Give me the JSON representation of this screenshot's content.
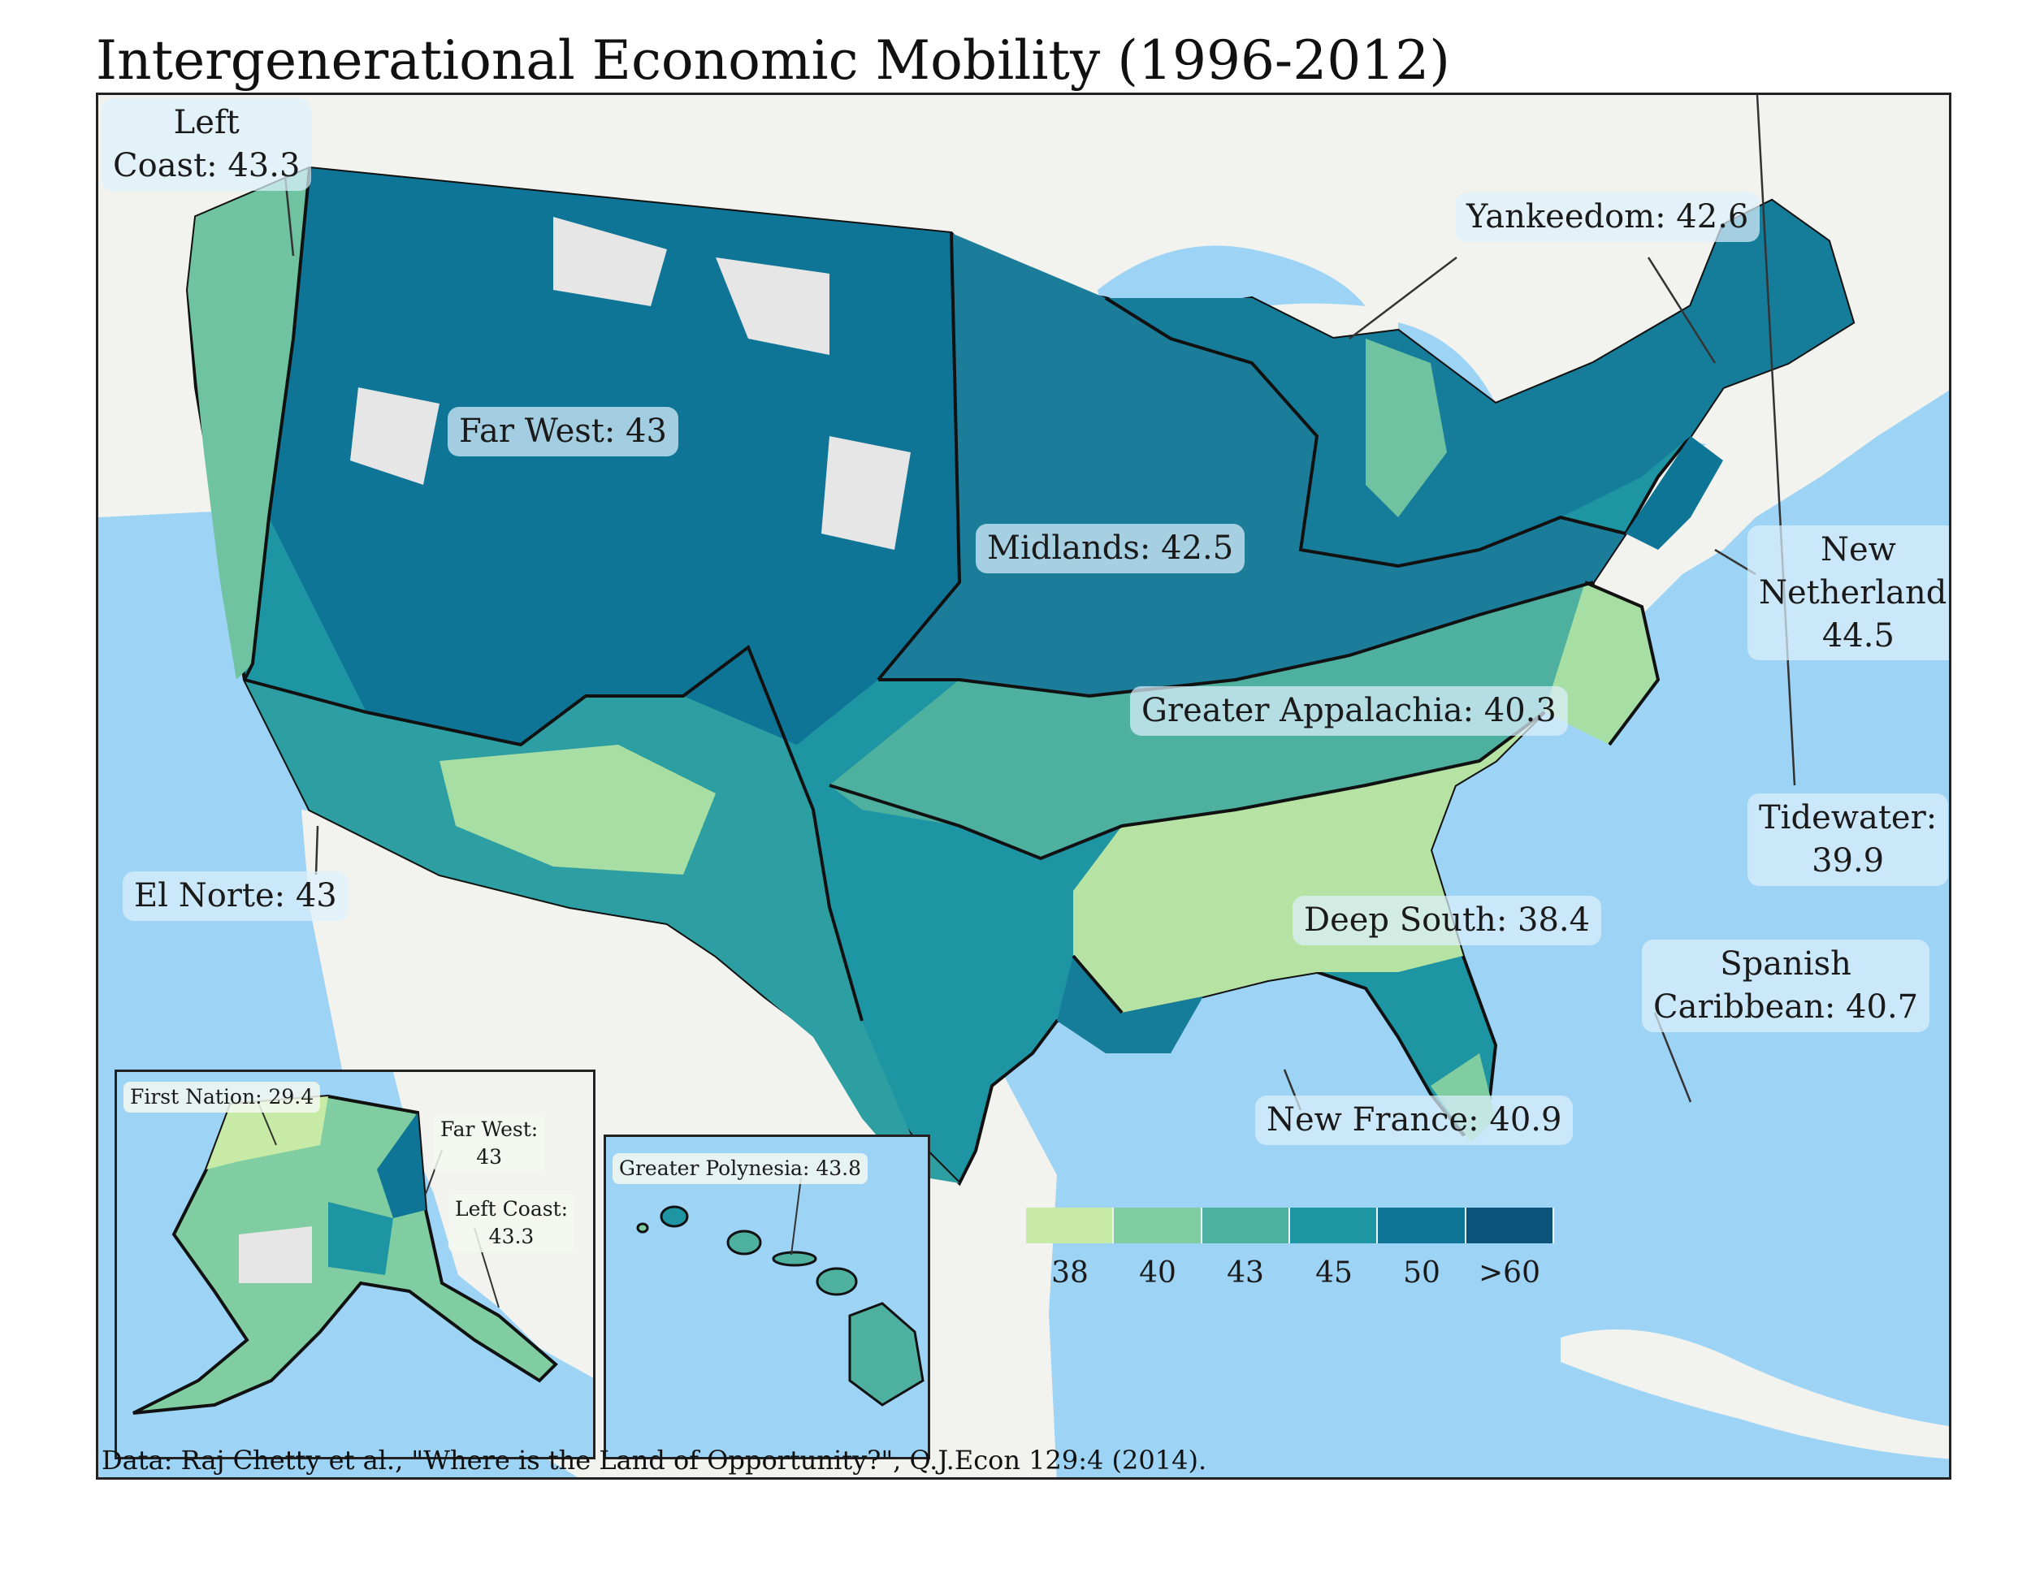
{
  "title": "Intergenerational Economic Mobility (1996-2012)",
  "source": "Data: Raj Chetty et al., \"Where is the Land of Opportunity?\", Q.J.Econ 129:4 (2014).",
  "regions": {
    "left_coast": {
      "line1": "Left",
      "line2": "Coast: 43.3"
    },
    "far_west": "Far West: 43",
    "yankeedom": "Yankeedom: 42.6",
    "midlands": "Midlands: 42.5",
    "new_netherland": {
      "line1": "New",
      "line2": "Netherland:",
      "line3": "44.5"
    },
    "greater_appalachia": "Greater Appalachia: 40.3",
    "tidewater": {
      "line1": "Tidewater:",
      "line2": "39.9"
    },
    "el_norte": "El Norte: 43",
    "deep_south": "Deep South: 38.4",
    "spanish_caribbean": {
      "line1": "Spanish",
      "line2": "Caribbean: 40.7"
    },
    "new_france": "New France: 40.9"
  },
  "alaska_inset": {
    "first_nation": "First Nation: 29.4",
    "far_west": {
      "line1": "Far West:",
      "line2": "43"
    },
    "left_coast": {
      "line1": "Left Coast:",
      "line2": "43.3"
    }
  },
  "hawaii_inset": {
    "greater_polynesia": "Greater Polynesia: 43.8"
  },
  "legend": {
    "colors": [
      "#c7eba6",
      "#80cda2",
      "#4eb1a0",
      "#1e95a3",
      "#0f7596",
      "#0b5378"
    ],
    "ticks": [
      "38",
      "40",
      "43",
      "45",
      "50",
      ">60"
    ]
  },
  "colors": {
    "ocean": "#9dd3f4",
    "land": "#f2f2ee",
    "no_data": "#e6e6e6",
    "region_border": "#111111"
  }
}
